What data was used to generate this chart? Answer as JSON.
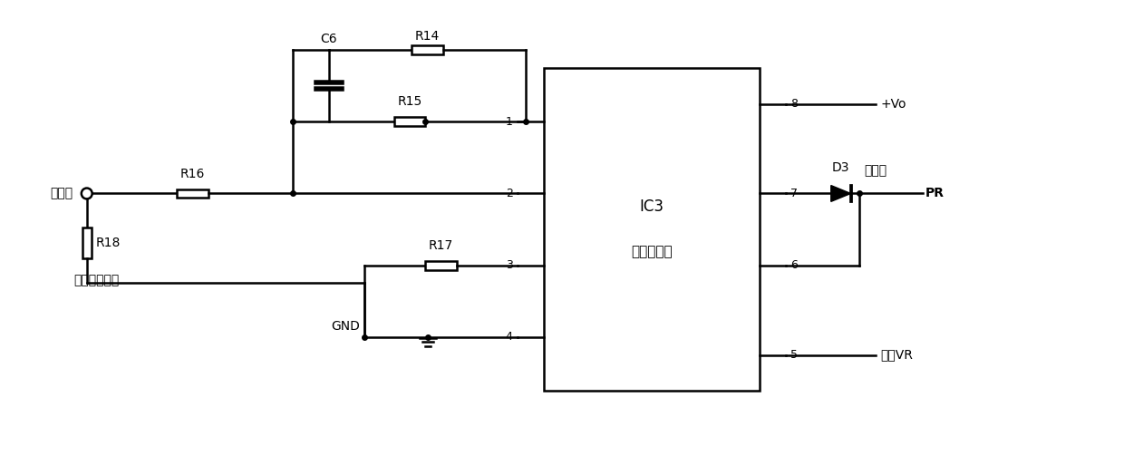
{
  "bg_color": "#ffffff",
  "line_color": "#000000",
  "line_width": 1.8,
  "fig_width": 12.4,
  "fig_height": 5.13,
  "labels": {
    "transformer": "变压器",
    "current_sample": "电流采样电阻",
    "IC3_line1": "IC3",
    "IC3_line2": "运算放大器",
    "plus_vo": "+Vo",
    "D3": "D3",
    "jld": "均流端",
    "PR": "PR",
    "caiyangVR": "采样VR",
    "GND": "GND",
    "C6": "C6",
    "R14": "R14",
    "R15": "R15",
    "R16": "R16",
    "R17": "R17",
    "R18": "R18",
    "pin1": "1",
    "pin2": "2",
    "pin3": "3",
    "pin4": "4",
    "pin5": "5",
    "pin6": "6",
    "pin7": "7",
    "pin8": "8"
  }
}
